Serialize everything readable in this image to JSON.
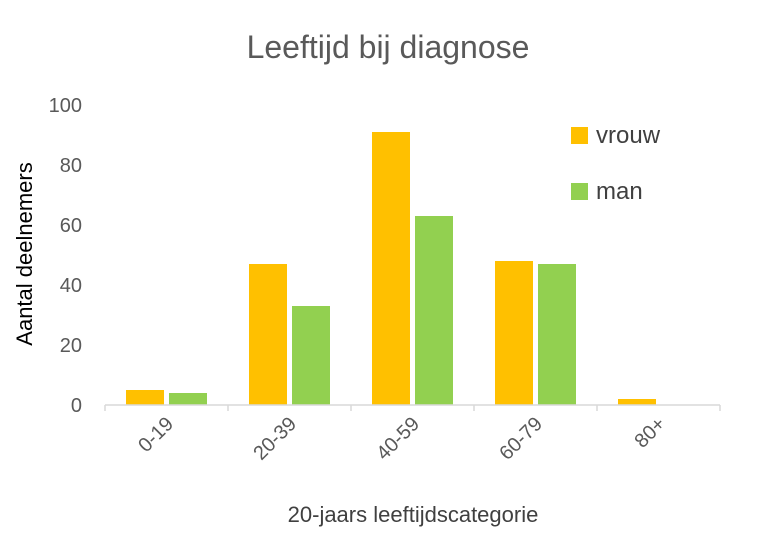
{
  "chart_data": {
    "type": "bar",
    "title": "Leeftijd bij diagnose",
    "xlabel": "20-jaars leeftijdscategorie",
    "ylabel": "Aantal deelnemers",
    "categories": [
      "0-19",
      "20-39",
      "40-59",
      "60-79",
      "80+"
    ],
    "series": [
      {
        "name": "vrouw",
        "values": [
          5,
          47,
          91,
          48,
          2
        ],
        "color": "#FFC000"
      },
      {
        "name": "man",
        "values": [
          4,
          33,
          63,
          47,
          0
        ],
        "color": "#92D050"
      }
    ],
    "ylim": [
      0,
      100
    ],
    "yticks": [
      "0",
      "20",
      "40",
      "60",
      "80",
      "100"
    ],
    "grid": false,
    "legend_position": "top-right"
  }
}
